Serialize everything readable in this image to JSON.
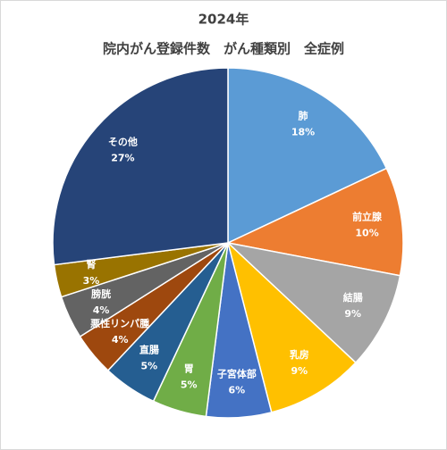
{
  "chart_data": {
    "type": "pie",
    "title": "2024年",
    "subtitle": "院内がん登録件数　がん種類別　全症例",
    "categories": [
      "肺",
      "前立腺",
      "結腸",
      "乳房",
      "子宮体部",
      "胃",
      "直腸",
      "悪性リンパ腫",
      "膀胱",
      "腎",
      "その他"
    ],
    "values": [
      18,
      10,
      9,
      9,
      6,
      5,
      5,
      4,
      4,
      3,
      27
    ],
    "value_labels": [
      "18%",
      "10%",
      "9%",
      "9%",
      "6%",
      "5%",
      "5%",
      "4%",
      "4%",
      "3%",
      "27%"
    ],
    "colors": [
      "#5b9bd5",
      "#ed7d31",
      "#a5a5a5",
      "#ffc000",
      "#4472c4",
      "#70ad47",
      "#255e91",
      "#9e480e",
      "#636363",
      "#997300",
      "#264478"
    ]
  }
}
